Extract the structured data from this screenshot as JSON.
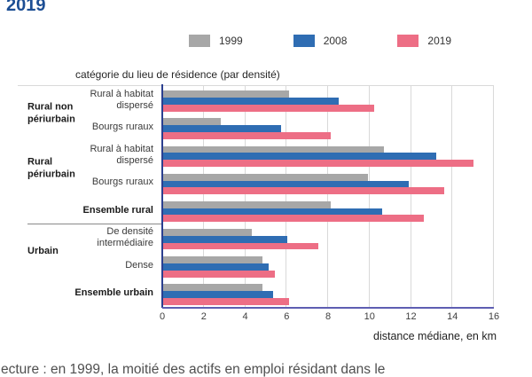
{
  "title": "2019",
  "subtitle": "catégorie du lieu de résidence (par densité)",
  "footer_text": "ecture : en 1999, la moitié des actifs en emploi résidant dans le",
  "colors": {
    "title_blue": "#1c4e94",
    "axis_left": "#2b3f90",
    "axis_bottom": "#5e5eb2",
    "gridline": "#d9d9d9"
  },
  "chart_data": {
    "type": "bar",
    "orientation": "horizontal",
    "title": "catégorie du lieu de résidence (par densité)",
    "xlabel": "distance médiane, en km",
    "xlim": [
      0,
      16
    ],
    "xticks": [
      0,
      2,
      4,
      6,
      8,
      10,
      12,
      14,
      16
    ],
    "grid": true,
    "legend_position": "top",
    "categories": [
      {
        "label": "Rural à habitat dispersé",
        "bold": false
      },
      {
        "label": "Bourgs ruraux",
        "bold": false
      },
      {
        "label": "Rural à habitat dispersé",
        "bold": false
      },
      {
        "label": "Bourgs ruraux",
        "bold": false
      },
      {
        "label": "Ensemble rural",
        "bold": true
      },
      {
        "label": "De densité intermédiaire",
        "bold": false
      },
      {
        "label": "Dense",
        "bold": false
      },
      {
        "label": "Ensemble urbain",
        "bold": true
      }
    ],
    "group_labels": [
      {
        "label": "Rural non périurbain",
        "rows": [
          0,
          1
        ]
      },
      {
        "label": "Rural périurbain",
        "rows": [
          2,
          3
        ]
      },
      {
        "label": "Urbain",
        "rows": [
          5,
          6
        ]
      }
    ],
    "separator_after_row": 4,
    "series": [
      {
        "name": "1999",
        "color": "#a7a7a7",
        "values": [
          6.1,
          2.8,
          10.7,
          9.9,
          8.1,
          4.3,
          4.8,
          4.8
        ]
      },
      {
        "name": "2008",
        "color": "#2f6db3",
        "values": [
          8.5,
          5.7,
          13.2,
          11.9,
          10.6,
          6.0,
          5.1,
          5.3
        ]
      },
      {
        "name": "2019",
        "color": "#ed6e85",
        "values": [
          10.2,
          8.1,
          15.0,
          13.6,
          12.6,
          7.5,
          5.4,
          6.1
        ]
      }
    ]
  }
}
